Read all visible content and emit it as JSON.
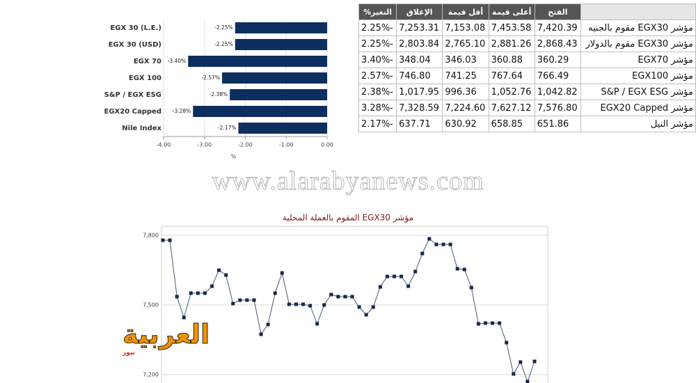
{
  "chart_data": [
    {
      "type": "bar",
      "orientation": "horizontal",
      "categories": [
        "EGX 30 (L.E.)",
        "EGX 30 (USD)",
        "EGX 70",
        "EGX 100",
        "S&P / EGX ESG",
        "EGX20 Capped",
        "Nile Index"
      ],
      "values": [
        -2.25,
        -2.25,
        -3.4,
        -2.57,
        -2.38,
        -3.28,
        -2.17
      ],
      "value_labels": [
        "-2.25%",
        "-2.25%",
        "-3.40%",
        "-2.57%",
        "-2.38%",
        "-3.28%",
        "-2.17%"
      ],
      "color": "#0d2f5f",
      "xlim": [
        -4,
        0
      ],
      "xticks": [
        {
          "value": -4,
          "label": "-4.00"
        },
        {
          "value": -3,
          "label": "-3.00"
        },
        {
          "value": -2,
          "label": "-2.00"
        },
        {
          "value": -1,
          "label": "-1.00"
        },
        {
          "value": 0,
          "label": "0.00"
        }
      ],
      "xlabel": "%",
      "grid": true
    },
    {
      "type": "line",
      "title": "مؤشر EGX30 المقوم بالعملة المحلية",
      "color": "#4a5670",
      "marker_color": "#16294a",
      "values": [
        7779,
        7779,
        7536,
        7446,
        7551,
        7551,
        7551,
        7581,
        7650,
        7629,
        7506,
        7521,
        7521,
        7521,
        7374,
        7416,
        7551,
        7638,
        7503,
        7503,
        7503,
        7497,
        7419,
        7500,
        7545,
        7536,
        7536,
        7536,
        7491,
        7458,
        7491,
        7578,
        7623,
        7623,
        7623,
        7581,
        7644,
        7722,
        7785,
        7761,
        7761,
        7761,
        7656,
        7653,
        7575,
        7419,
        7422,
        7422,
        7422,
        7338,
        7203,
        7254,
        7170,
        7257
      ],
      "ylim": [
        7164,
        7839
      ],
      "yticks": [
        {
          "value": 7200,
          "label": "7,200"
        },
        {
          "value": 7500,
          "label": "7,500"
        },
        {
          "value": 7800,
          "label": "7,800"
        }
      ],
      "grid": true
    }
  ],
  "table": {
    "headers": [
      "الفتح",
      "أعلى قيمة",
      "أقل قيمة",
      "الإغلاق",
      "التغير%"
    ],
    "rows": [
      [
        "مؤشر EGX30 مقوم بالجنيه",
        "7,420.39",
        "7,453.58",
        "7,153.08",
        "7,253.31",
        "2.25%-"
      ],
      [
        "مؤشر EGX30 مقوم بالدولار",
        "2,868.43",
        "2,881.26",
        "2,765.10",
        "2,803.84",
        "2.25%-"
      ],
      [
        "مؤشر EGX70",
        "360.29",
        "360.88",
        "346.03",
        "348.04",
        "3.40%-"
      ],
      [
        "مؤشر EGX100",
        "766.49",
        "767.64",
        "741.25",
        "746.80",
        "2.57%-"
      ],
      [
        "مؤشر S&P / EGX ESG",
        "1,042.82",
        "1,052.76",
        "996.36",
        "1,017.95",
        "2.38%-"
      ],
      [
        "مؤشر EGX20 Capped",
        "7,576.80",
        "7,627.12",
        "7,224.60",
        "7,328.59",
        "3.28%-"
      ],
      [
        "مؤشر النيل",
        "651.86",
        "658.85",
        "630.92",
        "637.71",
        "2.17%-"
      ]
    ]
  },
  "watermark": "www.alarabyanews.com",
  "logo": {
    "text": "العربية",
    "sub": "نيوز"
  }
}
